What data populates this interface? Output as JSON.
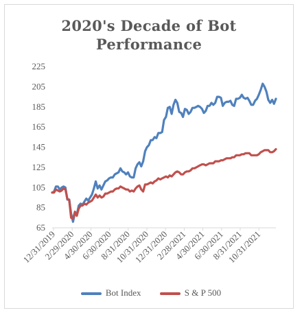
{
  "chart_data": {
    "type": "line",
    "title": [
      "2020's Decade of Bot",
      "Performance"
    ],
    "xlabel": "",
    "ylabel": "",
    "ylim": [
      65,
      225
    ],
    "yticks": [
      65,
      85,
      105,
      125,
      145,
      165,
      185,
      205,
      225
    ],
    "xtick_labels": [
      "12/31/2019",
      "2/29/2020",
      "4/30/2020",
      "6/30/2020",
      "8/31/2020",
      "10/31/2020",
      "12/31/2020",
      "2/28/2021",
      "4/30/2021",
      "6/30/2021",
      "8/31/2021",
      "10/31/2021"
    ],
    "grid": false,
    "legend_position": "bottom",
    "series": [
      {
        "name": "Bot Index",
        "color": "#4f81bd",
        "values": [
          100,
          101,
          106,
          106,
          103,
          105,
          106,
          105,
          93,
          93,
          79,
          71,
          80,
          78,
          87,
          89,
          88,
          91,
          94,
          92,
          95,
          98,
          104,
          111,
          104,
          107,
          103,
          107,
          111,
          112,
          114,
          115,
          115,
          118,
          119,
          120,
          124,
          121,
          120,
          118,
          120,
          116,
          115,
          115,
          124,
          128,
          130,
          126,
          131,
          141,
          145,
          147,
          152,
          152,
          155,
          154,
          159,
          159,
          160,
          172,
          175,
          184,
          185,
          178,
          187,
          192,
          189,
          180,
          179,
          175,
          183,
          182,
          178,
          180,
          184,
          184,
          185,
          186,
          185,
          183,
          179,
          181,
          186,
          186,
          189,
          187,
          189,
          195,
          195,
          194,
          186,
          189,
          190,
          190,
          191,
          187,
          186,
          193,
          193,
          194,
          197,
          194,
          193,
          194,
          191,
          187,
          187,
          191,
          193,
          197,
          202,
          208,
          205,
          200,
          192,
          189,
          192,
          188,
          193
        ]
      },
      {
        "name": "S & P 500",
        "color": "#c0504d",
        "values": [
          100,
          100,
          103,
          102,
          101,
          102,
          104,
          103,
          94,
          92,
          75,
          74,
          81,
          77,
          84,
          87,
          87,
          89,
          88,
          90,
          91,
          92,
          95,
          98,
          95,
          97,
          95,
          96,
          99,
          99,
          100,
          101,
          101,
          103,
          104,
          104,
          106,
          105,
          104,
          103,
          103,
          101,
          102,
          101,
          104,
          106,
          107,
          103,
          101,
          108,
          108,
          109,
          110,
          109,
          111,
          112,
          114,
          113,
          114,
          115,
          116,
          115,
          117,
          116,
          118,
          120,
          121,
          120,
          118,
          118,
          120,
          121,
          121,
          122,
          124,
          124,
          125,
          126,
          127,
          128,
          128,
          127,
          128,
          129,
          129,
          129,
          131,
          131,
          131,
          132,
          132,
          133,
          134,
          134,
          134,
          135,
          135,
          137,
          137,
          137,
          138,
          138,
          139,
          139,
          139,
          137,
          137,
          137,
          137,
          138,
          140,
          141,
          142,
          142,
          142,
          140,
          140,
          141,
          143
        ]
      }
    ]
  }
}
